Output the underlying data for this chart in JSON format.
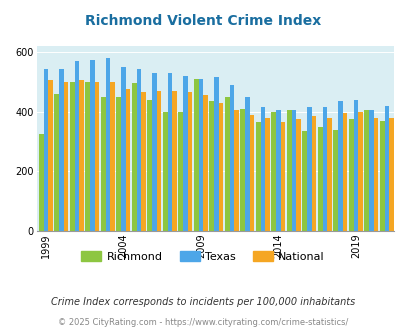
{
  "title": "Richmond Violent Crime Index",
  "years": [
    1999,
    2000,
    2001,
    2002,
    2003,
    2004,
    2005,
    2006,
    2007,
    2008,
    2009,
    2010,
    2011,
    2012,
    2013,
    2014,
    2015,
    2016,
    2017,
    2018,
    2019,
    2020,
    2021
  ],
  "richmond": [
    325,
    460,
    500,
    500,
    450,
    450,
    495,
    440,
    400,
    400,
    510,
    435,
    450,
    410,
    365,
    400,
    405,
    335,
    350,
    340,
    375,
    405,
    370
  ],
  "texas": [
    545,
    545,
    570,
    575,
    580,
    550,
    545,
    530,
    530,
    520,
    510,
    515,
    490,
    450,
    415,
    405,
    405,
    415,
    415,
    435,
    440,
    405,
    418
  ],
  "national": [
    505,
    500,
    505,
    500,
    500,
    475,
    465,
    470,
    470,
    465,
    455,
    430,
    405,
    390,
    380,
    365,
    375,
    385,
    380,
    395,
    400,
    380,
    380
  ],
  "richmond_color": "#8dc641",
  "texas_color": "#4da6e8",
  "national_color": "#f5a623",
  "plot_bg": "#daeef3",
  "xtick_years": [
    1999,
    2004,
    2009,
    2014,
    2019
  ],
  "title_color": "#1a6ea0",
  "footer_text1": "Crime Index corresponds to incidents per 100,000 inhabitants",
  "footer_text2": "© 2025 CityRating.com - https://www.cityrating.com/crime-statistics/"
}
